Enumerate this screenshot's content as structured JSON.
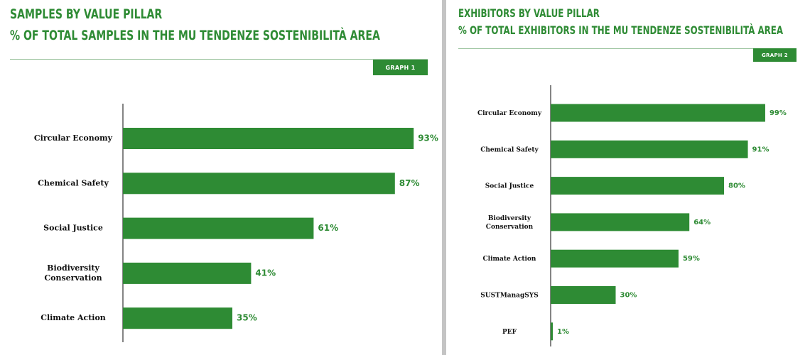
{
  "chart_data": [
    {
      "type": "bar",
      "orientation": "horizontal",
      "title": "SAMPLES BY VALUE PILLAR",
      "subtitle": "% OF TOTAL SAMPLES IN THE MU TENDENZE SOSTENIBILITÀ AREA",
      "badge": "GRAPH 1",
      "categories": [
        "Circular Economy",
        "Chemical Safety",
        "Social Justice",
        "Biodiversity Conservation",
        "Climate Action"
      ],
      "category_lines": [
        [
          "Circular Economy"
        ],
        [
          "Chemical Safety"
        ],
        [
          "Social Justice"
        ],
        [
          "Biodiversity",
          "Conservation"
        ],
        [
          "Climate Action"
        ]
      ],
      "values": [
        93,
        87,
        61,
        41,
        35
      ],
      "value_labels": [
        "93%",
        "87%",
        "61%",
        "41%",
        "35%"
      ],
      "unit": "%",
      "xlim": [
        0,
        100
      ],
      "bar_color": "#2e8b34",
      "grid": false,
      "legend": "none"
    },
    {
      "type": "bar",
      "orientation": "horizontal",
      "title": "EXHIBITORS BY VALUE PILLAR",
      "subtitle": "% OF TOTAL EXHIBITORS IN THE MU TENDENZE SOSTENIBILITÀ AREA",
      "badge": "GRAPH 2",
      "categories": [
        "Circular Economy",
        "Chemical Safety",
        "Social Justice",
        "Biodiversity Conservation",
        "Climate Action",
        "SUSTManagSYS",
        "PEF"
      ],
      "category_lines": [
        [
          "Circular Economy"
        ],
        [
          "Chemical Safety"
        ],
        [
          "Social Justice"
        ],
        [
          "Biodiversity",
          "Conservation"
        ],
        [
          "Climate Action"
        ],
        [
          "SUSTManagSYS"
        ],
        [
          "PEF"
        ]
      ],
      "values": [
        99,
        91,
        80,
        64,
        59,
        30,
        1
      ],
      "value_labels": [
        "99%",
        "91%",
        "80%",
        "64%",
        "59%",
        "30%",
        "1%"
      ],
      "unit": "%",
      "xlim": [
        0,
        100
      ],
      "bar_color": "#2e8b34",
      "grid": false,
      "legend": "none"
    }
  ]
}
